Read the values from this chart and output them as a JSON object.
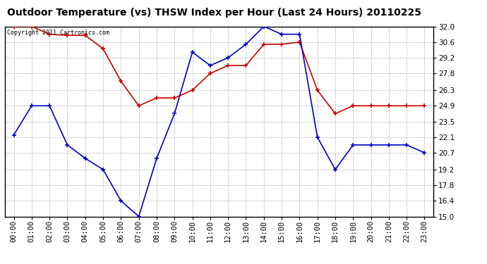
{
  "title": "Outdoor Temperature (vs) THSW Index per Hour (Last 24 Hours) 20110225",
  "copyright": "Copyright 2011 Cartronics.com",
  "hours": [
    "00:00",
    "01:00",
    "02:00",
    "03:00",
    "04:00",
    "05:00",
    "06:00",
    "07:00",
    "08:00",
    "09:00",
    "10:00",
    "11:00",
    "12:00",
    "13:00",
    "14:00",
    "15:00",
    "16:00",
    "17:00",
    "18:00",
    "19:00",
    "20:00",
    "21:00",
    "22:00",
    "23:00"
  ],
  "temp_blue": [
    22.3,
    24.9,
    24.9,
    21.4,
    20.2,
    19.2,
    16.4,
    15.0,
    20.2,
    24.2,
    29.7,
    28.5,
    29.2,
    30.4,
    32.0,
    31.3,
    31.3,
    22.1,
    19.2,
    21.4,
    21.4,
    21.4,
    21.4,
    20.7
  ],
  "thsw_red": [
    32.0,
    32.0,
    31.3,
    31.2,
    31.2,
    30.0,
    27.1,
    24.9,
    25.6,
    25.6,
    26.3,
    27.8,
    28.5,
    28.5,
    30.4,
    30.4,
    30.6,
    26.3,
    24.2,
    24.9,
    24.9,
    24.9,
    24.9,
    24.9
  ],
  "ylim": [
    15.0,
    32.0
  ],
  "yticks": [
    15.0,
    16.4,
    17.8,
    19.2,
    20.7,
    22.1,
    23.5,
    24.9,
    26.3,
    27.8,
    29.2,
    30.6,
    32.0
  ],
  "bg_color": "#ffffff",
  "plot_bg_color": "#ffffff",
  "grid_color": "#b0b0b0",
  "blue_color": "#0000cc",
  "red_color": "#cc0000",
  "title_fontsize": 10,
  "tick_fontsize": 7.5,
  "copyright_fontsize": 6
}
